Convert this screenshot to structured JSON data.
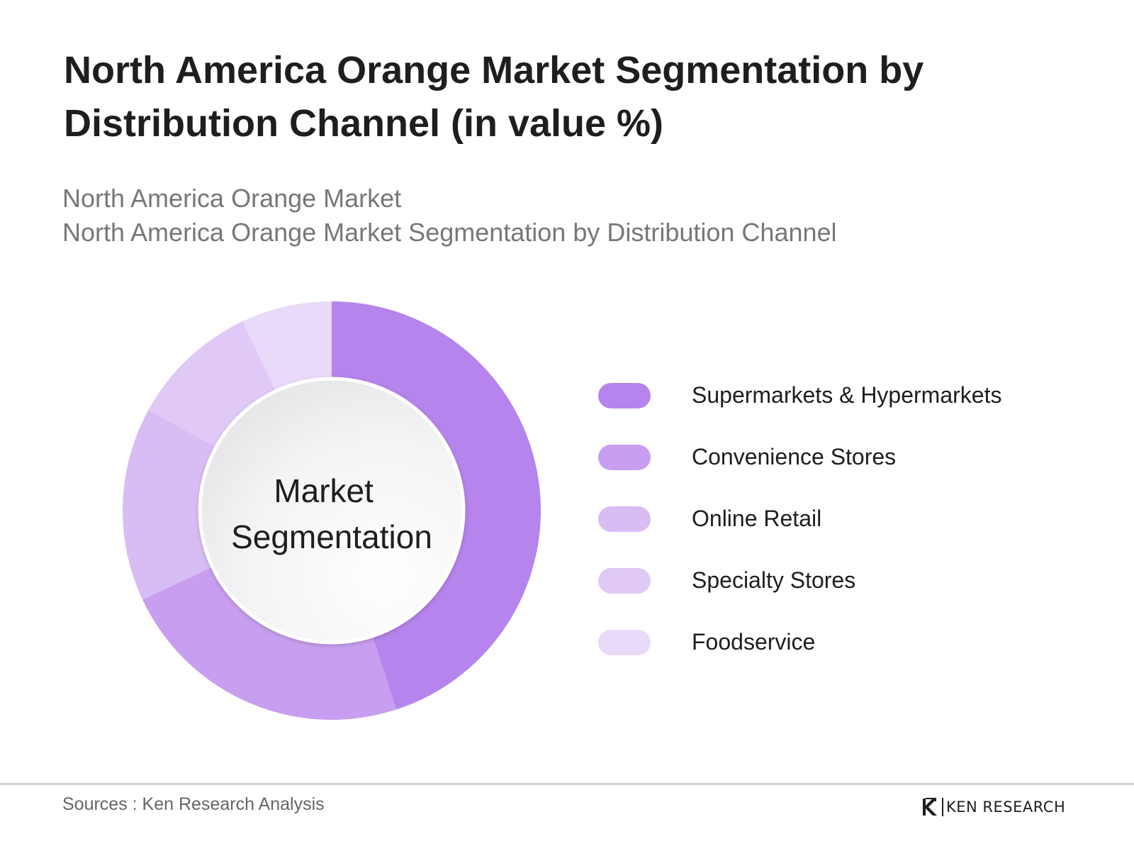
{
  "header": {
    "title": "North America Orange Market Segmentation by Distribution Channel (in value %)",
    "subtitle_lines": [
      "North America Orange Market",
      "North America Orange Market Segmentation by Distribution Channel"
    ]
  },
  "chart_data": {
    "type": "pie",
    "variant": "donut",
    "center_label_lines": [
      "Market",
      "Segmentation"
    ],
    "categories": [
      "Supermarkets & Hypermarkets",
      "Convenience Stores",
      "Online Retail",
      "Specialty Stores",
      "Foodservice"
    ],
    "values": [
      45,
      23,
      15,
      10,
      7
    ],
    "colors": [
      "#b584ec",
      "#c89ff0",
      "#d8bdf5",
      "#e0c9f6",
      "#e9daf9"
    ],
    "legend_position": "right"
  },
  "footer": {
    "source": "Sources : Ken Research Analysis",
    "logo_text": "KEN RESEARCH",
    "logo_icon": "ken-research-k-logo-icon"
  }
}
